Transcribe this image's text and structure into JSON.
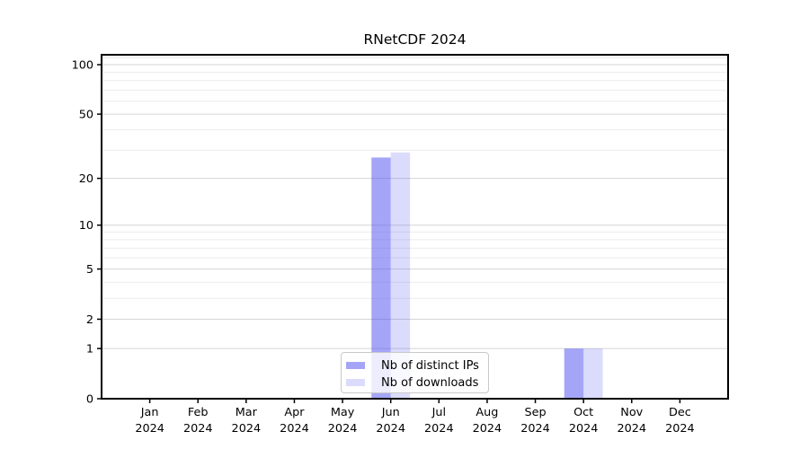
{
  "chart_data": {
    "type": "bar",
    "title": "RNetCDF 2024",
    "categories": [
      "Jan 2024",
      "Feb 2024",
      "Mar 2024",
      "Apr 2024",
      "May 2024",
      "Jun 2024",
      "Jul 2024",
      "Aug 2024",
      "Sep 2024",
      "Oct 2024",
      "Nov 2024",
      "Dec 2024"
    ],
    "series": [
      {
        "name": "Nb of distinct IPs",
        "color": "rgba(75,75,242,0.5)",
        "values": [
          0,
          0,
          0,
          0,
          0,
          27,
          0,
          0,
          0,
          1,
          0,
          0
        ]
      },
      {
        "name": "Nb of downloads",
        "color": "rgba(75,75,242,0.2)",
        "values": [
          0,
          0,
          0,
          0,
          0,
          29,
          0,
          0,
          0,
          1,
          0,
          0
        ]
      }
    ],
    "y_axis": {
      "scale": "log1p",
      "tick_values": [
        0,
        1,
        2,
        5,
        10,
        20,
        50,
        100
      ],
      "tick_labels": [
        "0",
        "1",
        "2",
        "5",
        "10",
        "20",
        "50",
        "100"
      ],
      "minor_gridline_values": [
        3,
        4,
        6,
        7,
        8,
        9,
        30,
        40,
        60,
        70,
        80,
        90,
        110
      ],
      "ylim": [
        0,
        114.8
      ]
    },
    "x_axis": {
      "xlabel": ""
    },
    "legend": {
      "position": "lower center"
    },
    "grid": true,
    "colors": {
      "spine": "#000000",
      "major_grid": "#d5d5d5",
      "minor_grid": "#ececec",
      "text": "#000000"
    }
  }
}
